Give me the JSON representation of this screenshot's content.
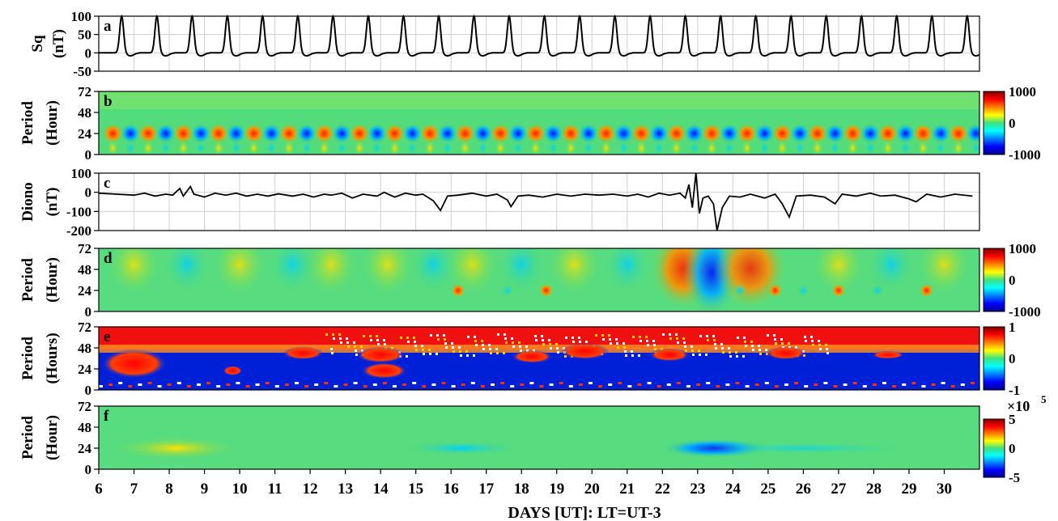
{
  "chart_data": [
    {
      "id": "a",
      "type": "line",
      "panel_label": "a",
      "ylabel": [
        "Sq",
        "(nT)"
      ],
      "ylim": [
        -50,
        100
      ],
      "yticks": [
        100,
        50,
        0,
        -50
      ],
      "xlim": [
        6,
        31
      ],
      "grid": true,
      "series": [
        {
          "pattern": "daily Sq peaks",
          "peak_times_day": [
            6.65,
            7.65,
            8.65,
            9.65,
            10.65,
            11.65,
            12.65,
            13.65,
            14.65,
            15.65,
            16.65,
            17.65,
            18.65,
            19.65,
            20.65,
            21.65,
            22.65,
            23.65,
            24.65,
            25.65,
            26.65,
            27.65,
            28.65,
            29.65,
            30.65
          ],
          "peak_value": 100,
          "baseline": 0,
          "post_peak_dip": -8
        }
      ]
    },
    {
      "id": "b",
      "type": "heatmap",
      "panel_label": "b",
      "ylabel": [
        "Period",
        "(Hour)"
      ],
      "ylim": [
        0,
        72
      ],
      "yticks": [
        72,
        48,
        24,
        0
      ],
      "colorbar": {
        "ticks": [
          "1000",
          "0",
          "-1000"
        ],
        "range": [
          -1000,
          1000
        ]
      },
      "description_values": {
        "dominant_period_hours": 24,
        "oscillation": "alternating +/- every half day"
      }
    },
    {
      "id": "c",
      "type": "line",
      "panel_label": "c",
      "ylabel": [
        "Diono",
        "(nT)"
      ],
      "ylim": [
        -200,
        100
      ],
      "yticks": [
        100,
        0,
        -100,
        -200
      ],
      "xlim": [
        6,
        31
      ],
      "grid": true,
      "series": [
        {
          "points": [
            [
              6.0,
              -5
            ],
            [
              6.5,
              -10
            ],
            [
              7.0,
              -15
            ],
            [
              7.3,
              -5
            ],
            [
              7.6,
              -20
            ],
            [
              7.9,
              -10
            ],
            [
              8.1,
              -15
            ],
            [
              8.3,
              20
            ],
            [
              8.4,
              -20
            ],
            [
              8.6,
              30
            ],
            [
              8.7,
              -10
            ],
            [
              9.0,
              -25
            ],
            [
              9.3,
              -5
            ],
            [
              9.6,
              -15
            ],
            [
              9.9,
              -5
            ],
            [
              10.2,
              -20
            ],
            [
              10.5,
              -10
            ],
            [
              10.8,
              -20
            ],
            [
              11.1,
              -8
            ],
            [
              11.5,
              -20
            ],
            [
              11.8,
              -10
            ],
            [
              12.1,
              -25
            ],
            [
              12.4,
              -10
            ],
            [
              12.6,
              -15
            ],
            [
              12.9,
              -5
            ],
            [
              13.2,
              -30
            ],
            [
              13.5,
              -10
            ],
            [
              13.9,
              -20
            ],
            [
              14.1,
              0
            ],
            [
              14.4,
              -25
            ],
            [
              14.7,
              -5
            ],
            [
              15.0,
              -15
            ],
            [
              15.2,
              -10
            ],
            [
              15.5,
              -45
            ],
            [
              15.7,
              -95
            ],
            [
              15.9,
              -20
            ],
            [
              16.2,
              -15
            ],
            [
              16.6,
              -5
            ],
            [
              17.0,
              -20
            ],
            [
              17.3,
              -10
            ],
            [
              17.6,
              -40
            ],
            [
              17.7,
              -75
            ],
            [
              17.9,
              -20
            ],
            [
              18.2,
              -15
            ],
            [
              18.6,
              -25
            ],
            [
              19.0,
              -10
            ],
            [
              19.4,
              -20
            ],
            [
              19.8,
              -10
            ],
            [
              20.2,
              -15
            ],
            [
              20.6,
              -10
            ],
            [
              21.0,
              -20
            ],
            [
              21.3,
              -10
            ],
            [
              21.6,
              -25
            ],
            [
              21.9,
              -5
            ],
            [
              22.2,
              -15
            ],
            [
              22.5,
              -5
            ],
            [
              22.65,
              -30
            ],
            [
              22.75,
              40
            ],
            [
              22.85,
              -80
            ],
            [
              22.95,
              100
            ],
            [
              23.05,
              -110
            ],
            [
              23.15,
              -30
            ],
            [
              23.3,
              -20
            ],
            [
              23.45,
              -60
            ],
            [
              23.55,
              -200
            ],
            [
              23.7,
              -80
            ],
            [
              23.9,
              -20
            ],
            [
              24.2,
              -25
            ],
            [
              24.5,
              -10
            ],
            [
              24.9,
              -30
            ],
            [
              25.2,
              -10
            ],
            [
              25.4,
              -60
            ],
            [
              25.6,
              -130
            ],
            [
              25.8,
              -20
            ],
            [
              26.2,
              -15
            ],
            [
              26.6,
              -25
            ],
            [
              26.9,
              -60
            ],
            [
              27.1,
              -10
            ],
            [
              27.5,
              -20
            ],
            [
              27.9,
              -5
            ],
            [
              28.2,
              -20
            ],
            [
              28.6,
              -15
            ],
            [
              29.0,
              -35
            ],
            [
              29.2,
              -50
            ],
            [
              29.5,
              -10
            ],
            [
              29.9,
              -25
            ],
            [
              30.3,
              -10
            ],
            [
              30.8,
              -20
            ]
          ]
        }
      ]
    },
    {
      "id": "d",
      "type": "heatmap",
      "panel_label": "d",
      "ylabel": [
        "Period",
        "(Hour)"
      ],
      "ylim": [
        0,
        72
      ],
      "yticks": [
        72,
        48,
        24,
        0
      ],
      "colorbar": {
        "ticks": [
          "1000",
          "0",
          "-1000"
        ],
        "range": [
          -1000,
          1000
        ]
      },
      "description_values": {
        "strongest_event_day": 23.5
      }
    },
    {
      "id": "e",
      "type": "heatmap",
      "panel_label": "e",
      "ylabel": [
        "Period",
        "(Hours)"
      ],
      "ylim": [
        0,
        72
      ],
      "yticks": [
        72,
        48,
        24,
        0
      ],
      "colorbar": {
        "ticks": [
          "1",
          "0",
          "-1"
        ],
        "range": [
          -1,
          1
        ]
      }
    },
    {
      "id": "f",
      "type": "heatmap",
      "panel_label": "f",
      "ylabel": [
        "Period",
        "(Hour)"
      ],
      "ylim": [
        0,
        72
      ],
      "yticks": [
        72,
        48,
        24,
        0
      ],
      "colorbar": {
        "ticks": [
          "5",
          "0",
          "-5"
        ],
        "range": [
          -5,
          5
        ],
        "multiplier": "×10",
        "exponent": "5"
      }
    }
  ],
  "xaxis": {
    "ticks": [
      "6",
      "7",
      "8",
      "9",
      "10",
      "11",
      "12",
      "13",
      "14",
      "15",
      "16",
      "17",
      "18",
      "19",
      "20",
      "21",
      "22",
      "23",
      "24",
      "25",
      "26",
      "27",
      "28",
      "29",
      "30"
    ],
    "xlim": [
      6,
      31
    ],
    "xlabel": "DAYS [UT]: LT=UT-3"
  }
}
